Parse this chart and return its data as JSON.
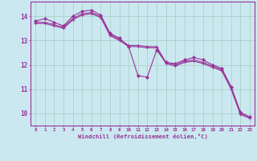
{
  "background_color": "#cbe8f0",
  "grid_color": "#a0cfc0",
  "line_color": "#993399",
  "xlabel": "Windchill (Refroidissement éolien,°C)",
  "xlim": [
    -0.5,
    23.5
  ],
  "ylim": [
    9.5,
    14.6
  ],
  "yticks": [
    10,
    11,
    12,
    13,
    14
  ],
  "xticks": [
    0,
    1,
    2,
    3,
    4,
    5,
    6,
    7,
    8,
    9,
    10,
    11,
    12,
    13,
    14,
    15,
    16,
    17,
    18,
    19,
    20,
    21,
    22,
    23
  ],
  "series": [
    {
      "x": [
        0,
        1,
        2,
        3,
        4,
        5,
        6,
        7,
        8,
        9,
        10,
        11,
        12,
        13,
        14,
        15,
        16,
        17,
        18,
        19,
        20,
        21,
        22,
        23
      ],
      "y": [
        13.8,
        13.9,
        13.75,
        13.6,
        14.0,
        14.2,
        14.25,
        14.05,
        13.3,
        13.1,
        12.75,
        11.55,
        11.5,
        12.6,
        12.1,
        12.05,
        12.2,
        12.3,
        12.2,
        12.0,
        11.85,
        11.1,
        10.05,
        9.85
      ],
      "marker": true
    },
    {
      "x": [
        0,
        1,
        2,
        3,
        4,
        5,
        6,
        7,
        8,
        9,
        10,
        11,
        12,
        13,
        14,
        15,
        16,
        17,
        18,
        19,
        20,
        21,
        22,
        23
      ],
      "y": [
        13.75,
        13.75,
        13.65,
        13.55,
        13.9,
        14.1,
        14.15,
        14.0,
        13.25,
        13.05,
        12.8,
        12.8,
        12.75,
        12.75,
        12.1,
        12.0,
        12.15,
        12.2,
        12.1,
        11.95,
        11.8,
        11.05,
        10.0,
        9.85
      ],
      "marker": false
    },
    {
      "x": [
        0,
        1,
        2,
        3,
        4,
        5,
        6,
        7,
        8,
        9,
        10,
        11,
        12,
        13,
        14,
        15,
        16,
        17,
        18,
        19,
        20,
        21,
        22,
        23
      ],
      "y": [
        13.7,
        13.7,
        13.6,
        13.5,
        13.85,
        14.05,
        14.1,
        13.95,
        13.2,
        13.0,
        12.75,
        12.75,
        12.7,
        12.7,
        12.05,
        11.95,
        12.1,
        12.15,
        12.05,
        11.9,
        11.75,
        11.0,
        9.95,
        9.8
      ],
      "marker": false
    }
  ]
}
